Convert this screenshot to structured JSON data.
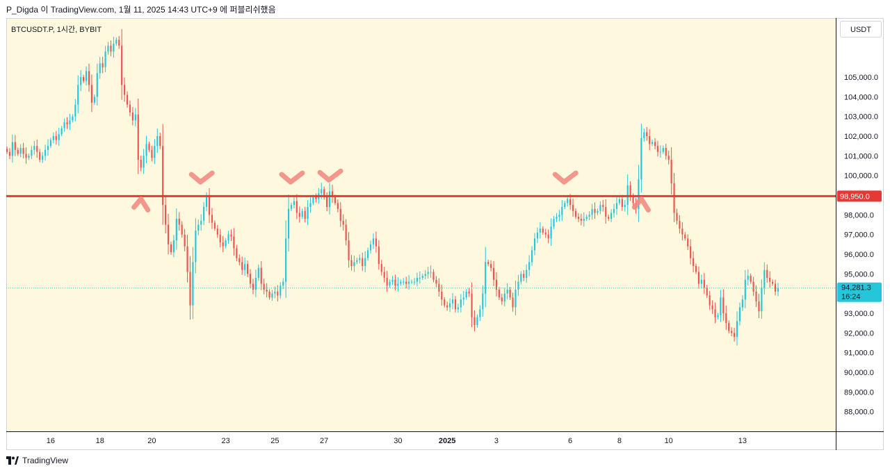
{
  "header": {
    "title": "P_Digda 이 TradingView.com, 1월 11, 2025 14:43 UTC+9 에 퍼블리쉬했음"
  },
  "chart": {
    "symbol_label": "BTCUSDT.P, 1시간, BYBIT"
  },
  "price_scale": {
    "currency": "USDT"
  },
  "footer": {
    "brand": "TradingView"
  },
  "colors": {
    "background": "#fdf8de",
    "up": "#26c6da",
    "down": "#ef5350",
    "resistance": "#e53935",
    "annotation": "#f28b82",
    "current_price_bg": "#26c6da"
  },
  "chart_data": {
    "type": "candlestick",
    "symbol": "BTCUSDT.P",
    "interval": "1시간",
    "exchange": "BYBIT",
    "ylim": [
      87000,
      108000
    ],
    "y_ticks": [
      "88,000.0",
      "89,000.0",
      "90,000.0",
      "91,000.0",
      "92,000.0",
      "93,000.0",
      "94,000.0",
      "95,000.0",
      "96,000.0",
      "97,000.0",
      "98,000.0",
      "99,000.0",
      "100,000.0",
      "101,000.0",
      "102,000.0",
      "103,000.0",
      "104,000.0",
      "105,000.0"
    ],
    "x_ticks": [
      "16",
      "18",
      "20",
      "23",
      "25",
      "27",
      "30",
      "2025",
      "3",
      "6",
      "8",
      "10",
      "13"
    ],
    "horizontal_line": {
      "value": 98950,
      "label": "98,950.0"
    },
    "current_price": {
      "value": 94281.3,
      "label": "94,281.3",
      "countdown": "16:24"
    },
    "annotations": [
      {
        "shape": "caret-up",
        "x_index": 49,
        "price": 98950
      },
      {
        "shape": "check",
        "x_index": 71,
        "price": 99350
      },
      {
        "shape": "check",
        "x_index": 104,
        "price": 99350
      },
      {
        "shape": "check",
        "x_index": 118,
        "price": 99450
      },
      {
        "shape": "check",
        "x_index": 204,
        "price": 99350
      },
      {
        "shape": "caret-up",
        "x_index": 232,
        "price": 98950
      }
    ],
    "closes": [
      101200,
      101000,
      101700,
      101300,
      101100,
      101400,
      101100,
      100900,
      101000,
      101300,
      101500,
      101200,
      100800,
      101000,
      101300,
      101500,
      101800,
      102000,
      101800,
      102100,
      102400,
      102700,
      102600,
      102800,
      103000,
      103600,
      104600,
      105000,
      104800,
      105300,
      104600,
      103700,
      104000,
      105200,
      105700,
      105500,
      106300,
      106600,
      106300,
      106700,
      106900,
      106600,
      104600,
      104100,
      103600,
      103200,
      102800,
      103100,
      100800,
      100400,
      101000,
      101600,
      101300,
      100900,
      101500,
      102000,
      101500,
      98500,
      97500,
      96500,
      96100,
      96700,
      97800,
      97500,
      97000,
      96400,
      95100,
      93400,
      95600,
      97200,
      97500,
      97700,
      98400,
      98900,
      98000,
      97600,
      97300,
      97000,
      96600,
      96400,
      96700,
      97000,
      96900,
      96300,
      95800,
      95600,
      95200,
      95500,
      95000,
      94500,
      94200,
      94800,
      95300,
      94500,
      94200,
      94100,
      93800,
      94000,
      94100,
      93900,
      94400,
      94600,
      96800,
      98300,
      98500,
      98700,
      98100,
      97900,
      98200,
      97800,
      98400,
      98600,
      98900,
      98800,
      99100,
      99300,
      98900,
      98400,
      99200,
      98900,
      98600,
      98300,
      97700,
      97500,
      96700,
      95700,
      95400,
      95600,
      95700,
      95800,
      95400,
      95800,
      96200,
      96500,
      96800,
      96400,
      95500,
      95100,
      94800,
      94400,
      94600,
      94700,
      94400,
      94500,
      94600,
      94600,
      94500,
      94600,
      94600,
      94600,
      94800,
      94800,
      94900,
      95000,
      95100,
      95100,
      94700,
      94500,
      94100,
      93700,
      93400,
      93300,
      93500,
      93700,
      93200,
      93300,
      93700,
      93800,
      94100,
      94000,
      92800,
      92400,
      92800,
      93200,
      94000,
      95600,
      95500,
      95300,
      94700,
      94200,
      93800,
      93600,
      94000,
      94200,
      93800,
      93300,
      94200,
      94600,
      95000,
      94800,
      95200,
      95600,
      96200,
      96800,
      97100,
      97300,
      97100,
      97000,
      96800,
      97400,
      97800,
      97900,
      98000,
      98400,
      98600,
      98800,
      98500,
      98200,
      97900,
      97800,
      97700,
      97800,
      97900,
      98000,
      98300,
      98100,
      98200,
      98500,
      98400,
      97900,
      97800,
      98100,
      98300,
      98600,
      98800,
      98400,
      98500,
      99500,
      98900,
      98600,
      98300,
      99800,
      101900,
      102200,
      102000,
      101600,
      101700,
      101500,
      101200,
      101200,
      101400,
      101000,
      100800,
      99600,
      98100,
      97700,
      97300,
      97000,
      96800,
      96400,
      95800,
      95400,
      95100,
      94500,
      94700,
      94300,
      93900,
      93400,
      93200,
      92800,
      92900,
      93800,
      93000,
      92500,
      92100,
      92000,
      91800,
      92600,
      93300,
      93700,
      94700,
      94900,
      94600,
      94100,
      93600,
      93100,
      94300,
      95200,
      94800,
      94600,
      94500,
      94100,
      94281.3
    ]
  }
}
